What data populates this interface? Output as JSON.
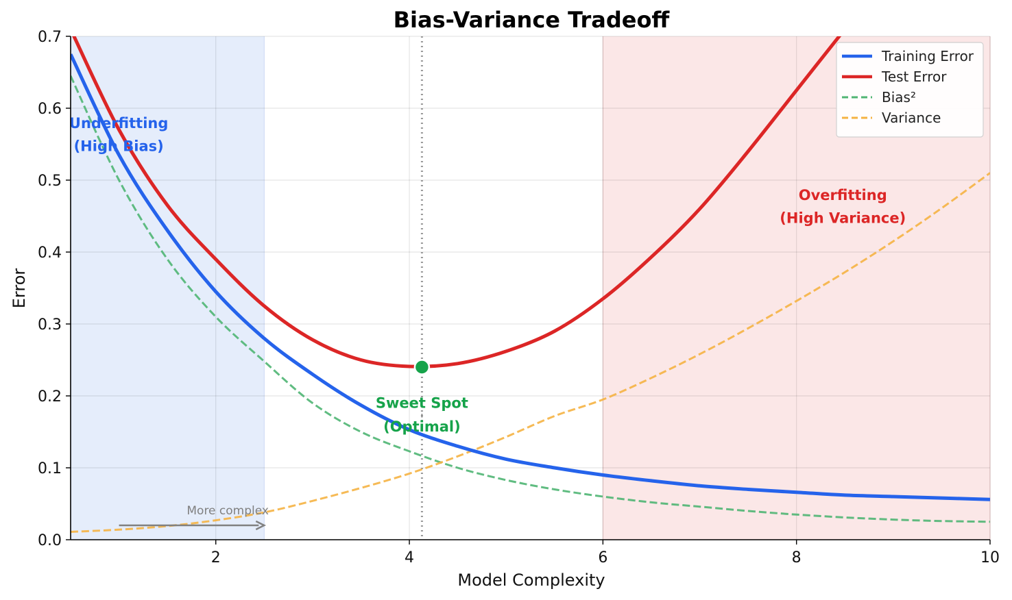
{
  "chart_data": {
    "type": "line",
    "title": "Bias-Variance Tradeoff",
    "xlabel": "Model Complexity",
    "ylabel": "Error",
    "xlim": [
      0.5,
      10
    ],
    "ylim": [
      0,
      0.7
    ],
    "xticks": [
      2,
      4,
      6,
      8,
      10
    ],
    "yticks": [
      0.0,
      0.1,
      0.2,
      0.3,
      0.4,
      0.5,
      0.6,
      0.7
    ],
    "xtick_labels": [
      "2",
      "4",
      "6",
      "8",
      "10"
    ],
    "ytick_labels": [
      "0.0",
      "0.1",
      "0.2",
      "0.3",
      "0.4",
      "0.5",
      "0.6",
      "0.7"
    ],
    "grid": true,
    "legend_position": "top-right",
    "x": [
      0.5,
      1,
      1.5,
      2,
      2.5,
      3,
      3.5,
      4,
      4.5,
      5,
      5.5,
      6,
      6.5,
      7,
      7.5,
      8,
      8.5,
      9,
      9.5,
      10
    ],
    "series": [
      {
        "name": "Training Error",
        "color": "#2563eb",
        "style": "solid",
        "values": [
          0.675,
          0.535,
          0.43,
          0.345,
          0.28,
          0.23,
          0.187,
          0.153,
          0.13,
          0.112,
          0.1,
          0.09,
          0.082,
          0.075,
          0.07,
          0.066,
          0.062,
          0.06,
          0.058,
          0.056
        ]
      },
      {
        "name": "Test Error",
        "color": "#dc2626",
        "style": "solid",
        "values": [
          0.71,
          0.57,
          0.465,
          0.39,
          0.325,
          0.278,
          0.25,
          0.241,
          0.245,
          0.262,
          0.29,
          0.335,
          0.393,
          0.46,
          0.54,
          0.625,
          0.71,
          null,
          null,
          null
        ]
      },
      {
        "name": "Bias²",
        "color": "#4fb573",
        "style": "dashed",
        "values": [
          0.645,
          0.5,
          0.39,
          0.31,
          0.248,
          0.19,
          0.15,
          0.123,
          0.1,
          0.083,
          0.07,
          0.06,
          0.052,
          0.046,
          0.04,
          0.035,
          0.031,
          0.028,
          0.026,
          0.025
        ]
      },
      {
        "name": "Variance",
        "color": "#f5b342",
        "style": "dashed",
        "values": [
          0.011,
          0.014,
          0.019,
          0.027,
          0.038,
          0.054,
          0.072,
          0.092,
          0.116,
          0.143,
          0.172,
          0.195,
          0.225,
          0.258,
          0.294,
          0.332,
          0.372,
          0.415,
          0.461,
          0.51
        ]
      }
    ],
    "regions": [
      {
        "label_line1": "Underfitting",
        "label_line2": "(High Bias)",
        "x0": 0.5,
        "x1": 2.5,
        "fill": "#e5edfb",
        "text_color": "#2563eb",
        "label_x": 1.5,
        "label_y1": 0.58,
        "label_y2": 0.555
      },
      {
        "label_line1": "Overfitting",
        "label_line2": "(High Variance)",
        "x0": 6,
        "x1": 10,
        "fill": "#fbe7e7",
        "text_color": "#dc2626",
        "label_x": 8.5,
        "label_y1": 0.48,
        "label_y2": 0.455
      }
    ],
    "optimum": {
      "x": 4.13,
      "y": 0.24,
      "color": "#16a34a",
      "label_line1": "Sweet Spot",
      "label_line2": "(Optimal)",
      "label_y1": 0.19,
      "label_y2": 0.165
    },
    "complexity_arrow": {
      "label": "More complex",
      "x_start": 1.0,
      "x_end": 2.5,
      "y": 0.02,
      "label_x": 1.7,
      "label_y": 0.04
    }
  }
}
